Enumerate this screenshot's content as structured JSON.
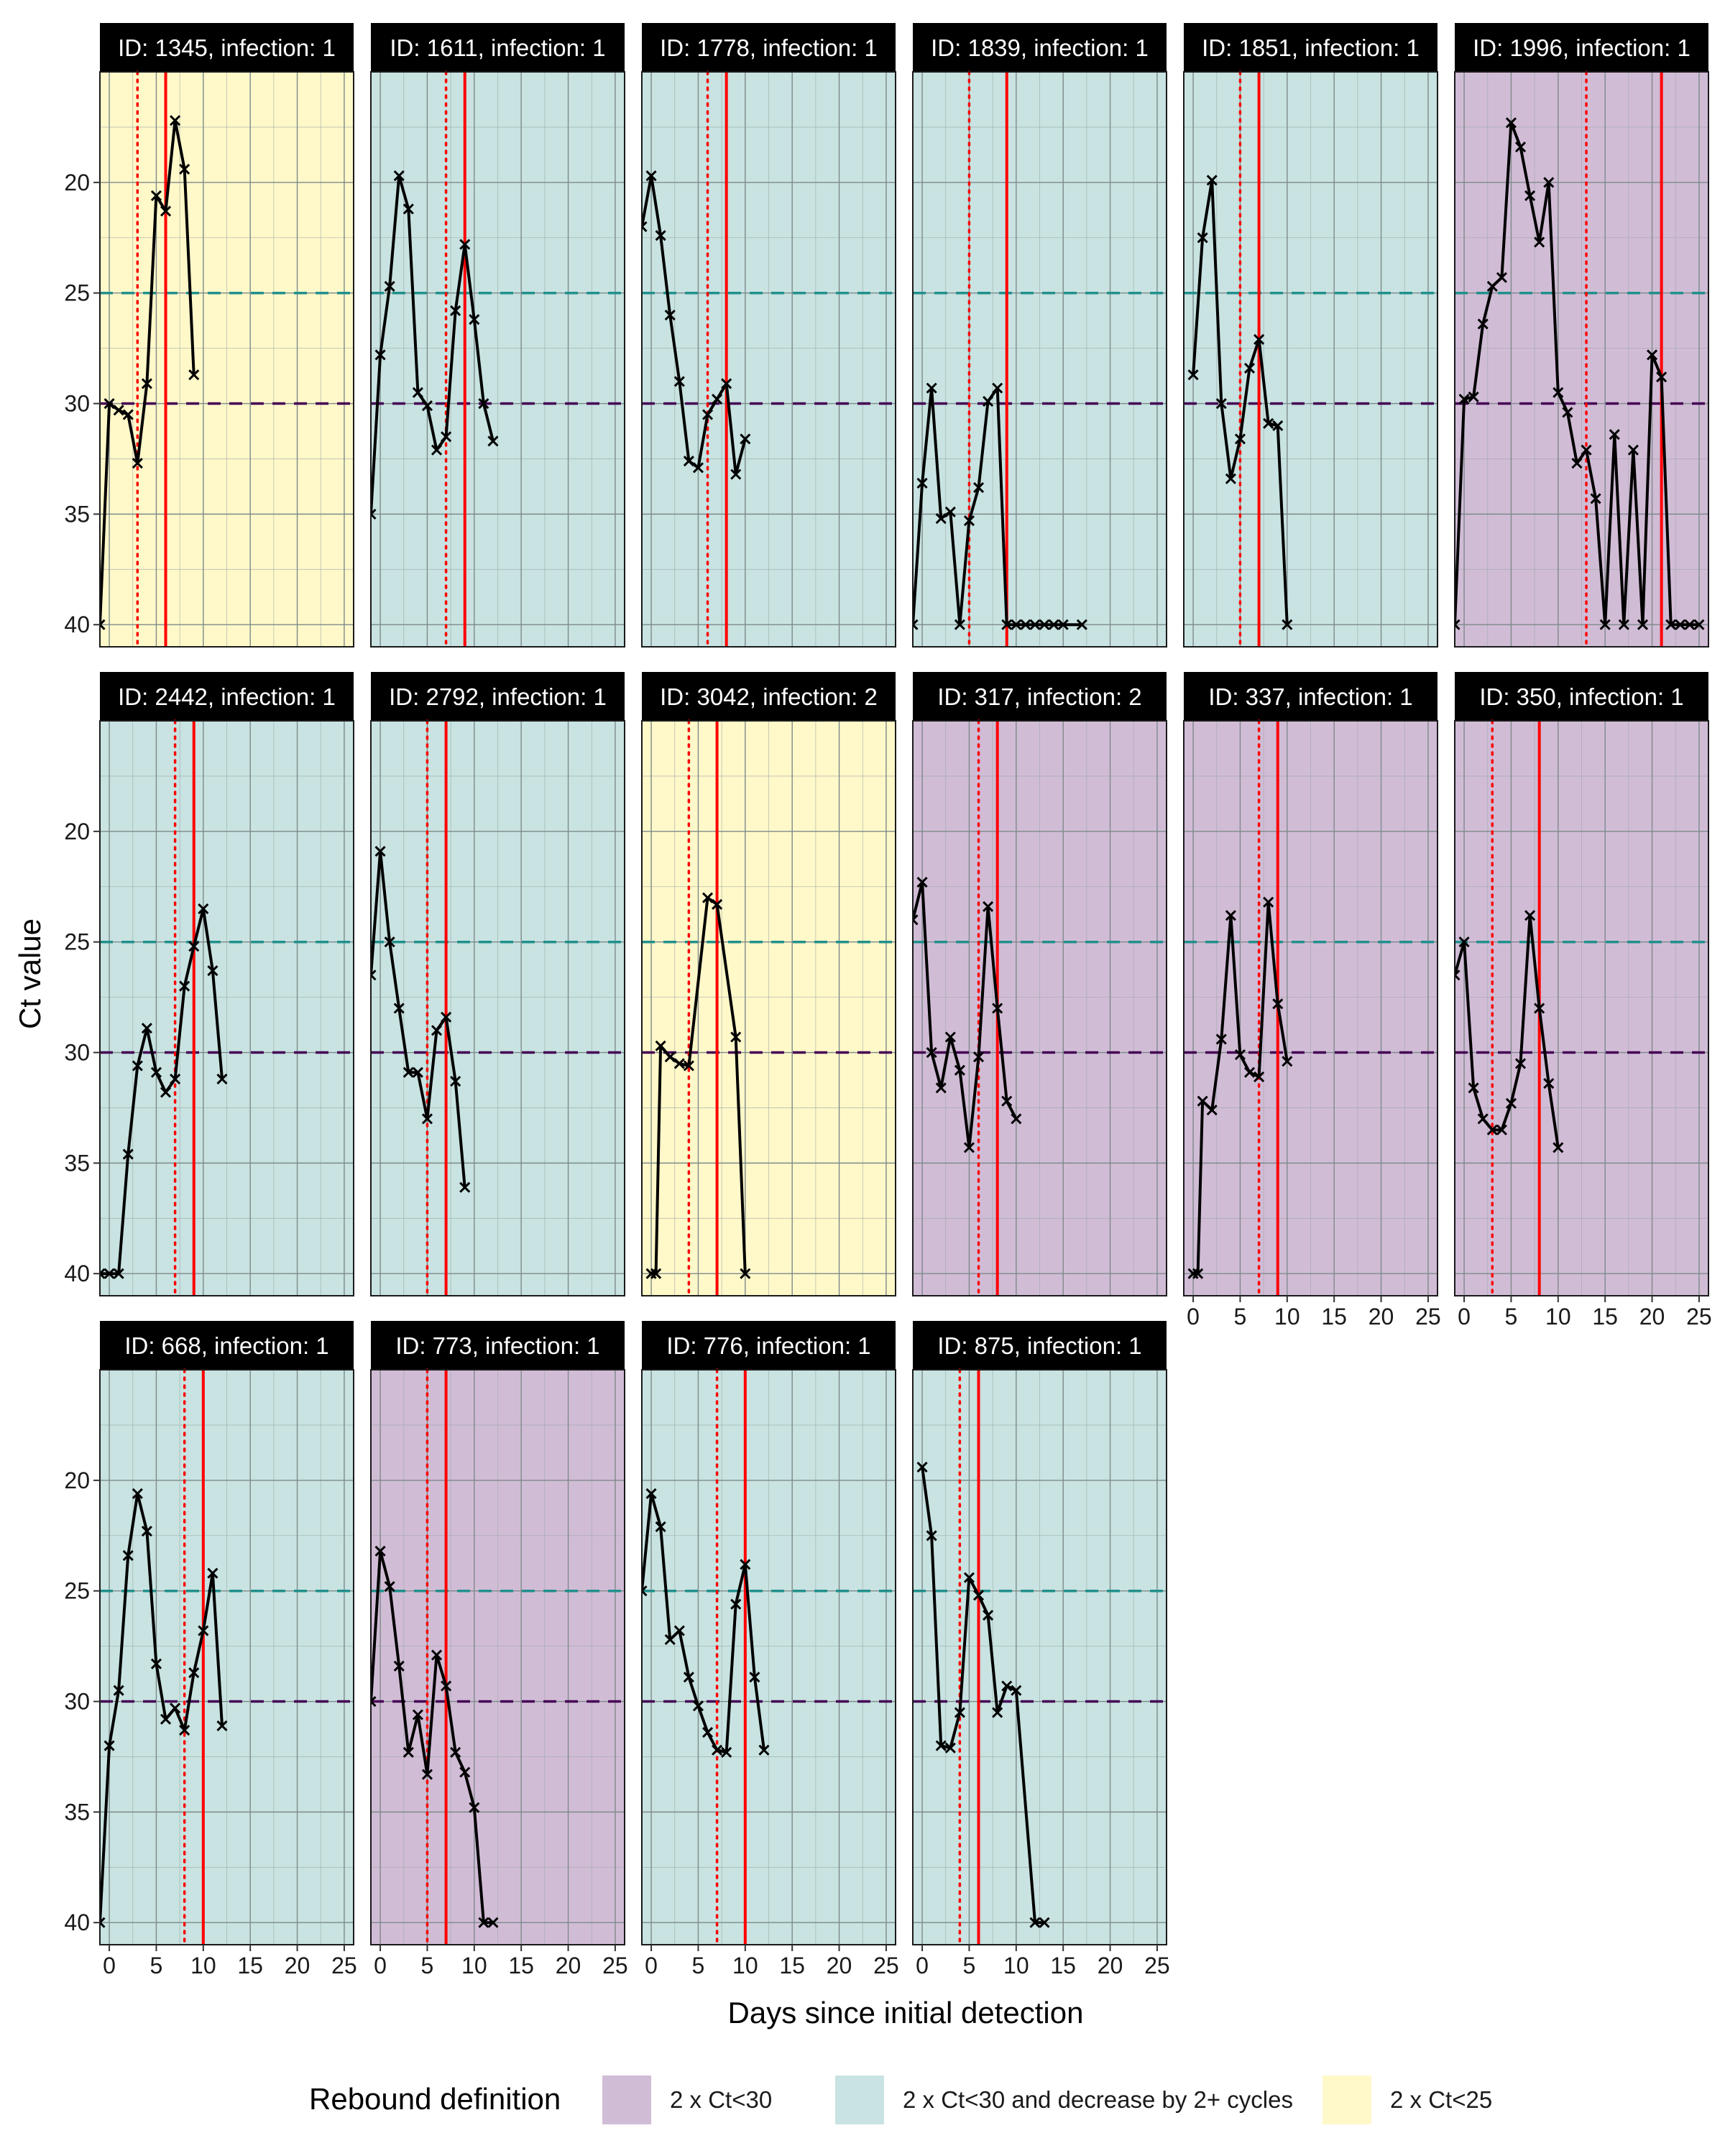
{
  "chart_data": {
    "type": "line",
    "xlabel": "Days since initial detection",
    "ylabel": "Ct value",
    "xlim": [
      -1,
      26
    ],
    "ylim": [
      41,
      15
    ],
    "y_reversed": true,
    "xticks": [
      0,
      5,
      10,
      15,
      20,
      25
    ],
    "yticks": [
      20,
      25,
      30,
      35,
      40
    ],
    "reference_lines": [
      {
        "value": 25,
        "color": "#21908c",
        "style": "dashed"
      },
      {
        "value": 30,
        "color": "#440154",
        "style": "dashed"
      }
    ],
    "marker_colors": {
      "solid": "#ff0000",
      "dotted": "#ff0000"
    },
    "legend": {
      "title": "Rebound definition",
      "position": "bottom",
      "items": [
        {
          "label": "2 x Ct<30",
          "color": "#d1bcd6"
        },
        {
          "label": "2 x Ct<30 and decrease by 2+ cycles",
          "color": "#c8e3e1"
        },
        {
          "label": "2 x Ct<25",
          "color": "#fff8c9"
        }
      ]
    },
    "panels": [
      {
        "title": "ID: 1345, infection: 1",
        "category": 2,
        "solid_x": 6,
        "dotted_x": 3,
        "x": [
          -1,
          0,
          1,
          2,
          3,
          4,
          5,
          6,
          7,
          8,
          9
        ],
        "y": [
          40,
          30,
          30.3,
          30.5,
          32.7,
          29.1,
          20.6,
          21.3,
          17.2,
          19.4,
          28.7
        ]
      },
      {
        "title": "ID: 1611, infection: 1",
        "category": 1,
        "solid_x": 9,
        "dotted_x": 7,
        "x": [
          -1,
          0,
          1,
          2,
          3,
          4,
          5,
          6,
          7,
          8,
          9,
          10,
          11,
          12
        ],
        "y": [
          35,
          27.8,
          24.7,
          19.7,
          21.2,
          29.5,
          30.1,
          32.1,
          31.5,
          25.8,
          22.8,
          26.2,
          30,
          31.7
        ]
      },
      {
        "title": "ID: 1778, infection: 1",
        "category": 1,
        "solid_x": 8,
        "dotted_x": 6,
        "x": [
          -1,
          0,
          1,
          2,
          3,
          4,
          5,
          6,
          7,
          8,
          9,
          10
        ],
        "y": [
          22,
          19.7,
          22.4,
          26,
          29,
          32.6,
          32.9,
          30.5,
          29.8,
          29.1,
          33.2,
          31.6
        ]
      },
      {
        "title": "ID: 1839, infection: 1",
        "category": 1,
        "solid_x": 9,
        "dotted_x": 5,
        "x": [
          -1,
          0,
          1,
          2,
          3,
          4,
          5,
          6,
          7,
          8,
          9,
          10,
          11,
          12,
          13,
          14,
          15,
          17
        ],
        "y": [
          40,
          33.6,
          29.3,
          35.2,
          34.9,
          40,
          35.3,
          33.8,
          29.9,
          29.3,
          40,
          40,
          40,
          40,
          40,
          40,
          40,
          40
        ]
      },
      {
        "title": "ID: 1851, infection: 1",
        "category": 1,
        "solid_x": 7,
        "dotted_x": 5,
        "x": [
          0,
          1,
          2,
          3,
          4,
          5,
          6,
          7,
          8,
          9,
          10
        ],
        "y": [
          28.7,
          22.5,
          19.9,
          30,
          33.4,
          31.6,
          28.4,
          27.1,
          30.9,
          31,
          40
        ]
      },
      {
        "title": "ID: 1996, infection: 1",
        "category": 0,
        "solid_x": 21,
        "dotted_x": 13,
        "x": [
          -1,
          0,
          1,
          2,
          3,
          4,
          5,
          6,
          7,
          8,
          9,
          10,
          11,
          12,
          13,
          14,
          15,
          16,
          17,
          18,
          19,
          20,
          21,
          22,
          23,
          24,
          25
        ],
        "y": [
          40,
          29.8,
          29.7,
          26.4,
          24.7,
          24.3,
          17.3,
          18.4,
          20.6,
          22.7,
          20,
          29.5,
          30.4,
          32.7,
          32.1,
          34.3,
          40,
          31.4,
          40,
          32.1,
          40,
          27.8,
          28.8,
          40,
          40,
          40,
          40
        ]
      },
      {
        "title": "ID: 2442, infection: 1",
        "category": 1,
        "solid_x": 9,
        "dotted_x": 7,
        "x": [
          -1,
          0,
          1,
          2,
          3,
          4,
          5,
          6,
          7,
          8,
          9,
          10,
          11,
          12
        ],
        "y": [
          40,
          40,
          40,
          34.6,
          30.6,
          28.9,
          30.9,
          31.8,
          31.2,
          27,
          25.2,
          23.5,
          26.3,
          31.2
        ]
      },
      {
        "title": "ID: 2792, infection: 1",
        "category": 1,
        "solid_x": 7,
        "dotted_x": 5,
        "x": [
          -1,
          0,
          1,
          2,
          3,
          4,
          5,
          6,
          7,
          8,
          9
        ],
        "y": [
          26.5,
          20.9,
          25,
          28,
          30.9,
          30.9,
          33,
          29,
          28.4,
          31.3,
          36.1
        ]
      },
      {
        "title": "ID: 3042, infection: 2",
        "category": 2,
        "solid_x": 7,
        "dotted_x": 4,
        "x": [
          0,
          0.5,
          1,
          2,
          3,
          4,
          6,
          7,
          9,
          10
        ],
        "y": [
          40,
          40,
          29.7,
          30.2,
          30.5,
          30.6,
          23,
          23.3,
          29.3,
          40
        ]
      },
      {
        "title": "ID: 317, infection: 2",
        "category": 0,
        "solid_x": 8,
        "dotted_x": 6,
        "x": [
          -1,
          0,
          1,
          2,
          3,
          4,
          5,
          6,
          7,
          8,
          9,
          10
        ],
        "y": [
          24,
          22.3,
          30,
          31.6,
          29.3,
          30.8,
          34.3,
          30.2,
          23.4,
          28,
          32.2,
          33
        ]
      },
      {
        "title": "ID: 337, infection: 1",
        "category": 0,
        "solid_x": 9,
        "dotted_x": 7,
        "x": [
          0,
          0.5,
          1,
          2,
          3,
          4,
          5,
          6,
          7,
          8,
          9,
          10
        ],
        "y": [
          40,
          40,
          32.2,
          32.6,
          29.4,
          23.8,
          30.1,
          30.9,
          31.1,
          23.2,
          27.8,
          30.4
        ]
      },
      {
        "title": "ID: 350, infection: 1",
        "category": 0,
        "solid_x": 8,
        "dotted_x": 3,
        "x": [
          -1,
          0,
          1,
          2,
          3,
          4,
          5,
          6,
          7,
          8,
          9,
          10
        ],
        "y": [
          26.5,
          25,
          31.6,
          33,
          33.5,
          33.5,
          32.3,
          30.5,
          23.8,
          28,
          31.4,
          34.3
        ]
      },
      {
        "title": "ID: 668, infection: 1",
        "category": 1,
        "solid_x": 10,
        "dotted_x": 8,
        "x": [
          -1,
          0,
          1,
          2,
          3,
          4,
          5,
          6,
          7,
          8,
          9,
          10,
          11,
          12
        ],
        "y": [
          40,
          32,
          29.5,
          23.4,
          20.6,
          22.3,
          28.3,
          30.8,
          30.3,
          31.3,
          28.7,
          26.8,
          24.2,
          31.1
        ]
      },
      {
        "title": "ID: 773, infection: 1",
        "category": 0,
        "solid_x": 7,
        "dotted_x": 5,
        "x": [
          -1,
          0,
          1,
          2,
          3,
          4,
          5,
          6,
          7,
          8,
          9,
          10,
          11,
          12
        ],
        "y": [
          30,
          23.2,
          24.8,
          28.4,
          32.3,
          30.6,
          33.3,
          27.9,
          29.3,
          32.3,
          33.2,
          34.8,
          40,
          40
        ]
      },
      {
        "title": "ID: 776, infection: 1",
        "category": 1,
        "solid_x": 10,
        "dotted_x": 7,
        "x": [
          -1,
          0,
          1,
          2,
          3,
          4,
          5,
          6,
          7,
          8,
          9,
          10,
          11,
          12
        ],
        "y": [
          25,
          20.6,
          22.1,
          27.2,
          26.8,
          28.9,
          30.2,
          31.4,
          32.2,
          32.3,
          25.6,
          23.8,
          28.9,
          32.2
        ]
      },
      {
        "title": "ID: 875, infection: 1",
        "category": 1,
        "solid_x": 6,
        "dotted_x": 4,
        "x": [
          0,
          1,
          2,
          3,
          4,
          5,
          6,
          7,
          8,
          9,
          10,
          12,
          13
        ],
        "y": [
          19.4,
          22.5,
          32,
          32.1,
          30.5,
          24.4,
          25.2,
          26.1,
          30.5,
          29.3,
          29.5,
          40,
          40
        ]
      }
    ]
  }
}
